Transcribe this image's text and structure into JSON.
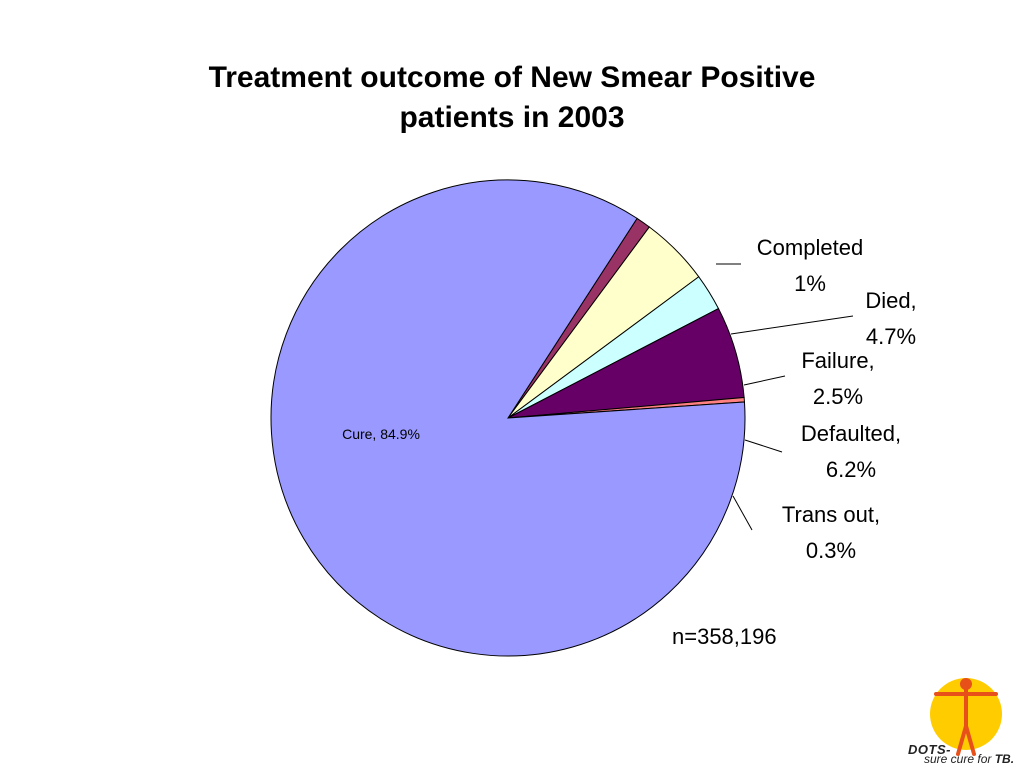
{
  "title": [
    "Treatment outcome of New Smear Positive",
    "patients in 2003"
  ],
  "sample_size": "n=358,196",
  "logo": {
    "brand": "DOTS-",
    "tagline_prefix": "sure cure for ",
    "tagline_bold": "TB."
  },
  "colors": {
    "cure": "#9999FF",
    "completed": "#993366",
    "died": "#FFFFCC",
    "failure": "#CCFFFF",
    "defaulted": "#660066",
    "trans_out": "#FF8080",
    "logo_sun": "#FFCC00",
    "logo_figure": "#E8501A"
  },
  "chart_data": {
    "type": "pie",
    "title": "Treatment outcome of New Smear Positive patients in 2003",
    "slices": [
      {
        "label": "Cure",
        "value": 84.9,
        "display": "Cure, 84.9%",
        "color": "#9999FF"
      },
      {
        "label": "Completed",
        "value": 1.0,
        "display": [
          "Completed",
          "1%"
        ],
        "color": "#993366"
      },
      {
        "label": "Died",
        "value": 4.7,
        "display": [
          "Died,",
          "4.7%"
        ],
        "color": "#FFFFCC"
      },
      {
        "label": "Failure",
        "value": 2.5,
        "display": [
          "Failure,",
          "2.5%"
        ],
        "color": "#CCFFFF"
      },
      {
        "label": "Defaulted",
        "value": 6.2,
        "display": [
          "Defaulted,",
          "6.2%"
        ],
        "color": "#660066"
      },
      {
        "label": "Trans out",
        "value": 0.3,
        "display": [
          "Trans out,",
          "0.3%"
        ],
        "color": "#FF8080"
      }
    ],
    "annotation": "n=358,196"
  }
}
